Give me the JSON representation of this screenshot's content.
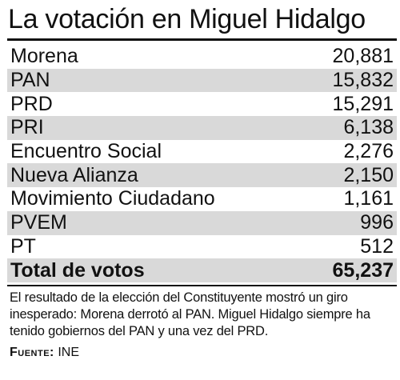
{
  "title": "La votación en Miguel Hidalgo",
  "chart_data": {
    "type": "table",
    "title": "La votación en Miguel Hidalgo",
    "categories": [
      "Morena",
      "PAN",
      "PRD",
      "PRI",
      "Encuentro Social",
      "Nueva Alianza",
      "Movimiento Ciudadano",
      "PVEM",
      "PT"
    ],
    "values": [
      20881,
      15832,
      15291,
      6138,
      2276,
      2150,
      1161,
      996,
      512
    ],
    "rows": [
      {
        "label": "Morena",
        "value": "20,881"
      },
      {
        "label": "PAN",
        "value": "15,832"
      },
      {
        "label": "PRD",
        "value": "15,291"
      },
      {
        "label": "PRI",
        "value": "6,138"
      },
      {
        "label": "Encuentro Social",
        "value": "2,276"
      },
      {
        "label": "Nueva Alianza",
        "value": "2,150"
      },
      {
        "label": "Movimiento Ciudadano",
        "value": "1,161"
      },
      {
        "label": "PVEM",
        "value": "996"
      },
      {
        "label": "PT",
        "value": "512"
      }
    ],
    "total": {
      "label": "Total de votos",
      "value": "65,237"
    }
  },
  "note": "El resultado de la elección del Constituyente mostró un giro inesperado: Morena derrotó al PAN. Miguel Hidalgo siempre ha tenido gobiernos del PAN y una vez del PRD.",
  "source": {
    "label": "Fuente:",
    "value": "INE"
  },
  "colors": {
    "shade": "#d9d9d9",
    "text": "#111111"
  }
}
